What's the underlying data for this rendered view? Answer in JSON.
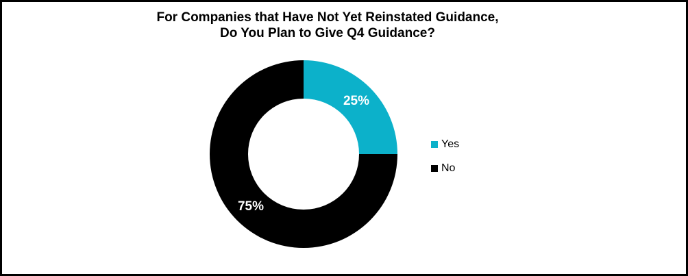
{
  "frame": {
    "background": "#ffffff",
    "border_color": "#000000"
  },
  "title": {
    "line1": "For Companies that Have Not Yet Reinstated Guidance,",
    "line2": "Do You Plan to Give Q4 Guidance?"
  },
  "chart_data": {
    "type": "pie",
    "subtype": "donut",
    "title": "For Companies that Have Not Yet Reinstated Guidance, Do You Plan to Give Q4 Guidance?",
    "categories": [
      "Yes",
      "No"
    ],
    "values": [
      25,
      75
    ],
    "colors": [
      "#0CB1CA",
      "#000000"
    ],
    "data_labels": [
      "25%",
      "75%"
    ],
    "data_label_color": "#ffffff",
    "start_angle_deg": 0,
    "direction": "clockwise",
    "donut_hole_ratio": 0.59,
    "legend_position": "right"
  }
}
